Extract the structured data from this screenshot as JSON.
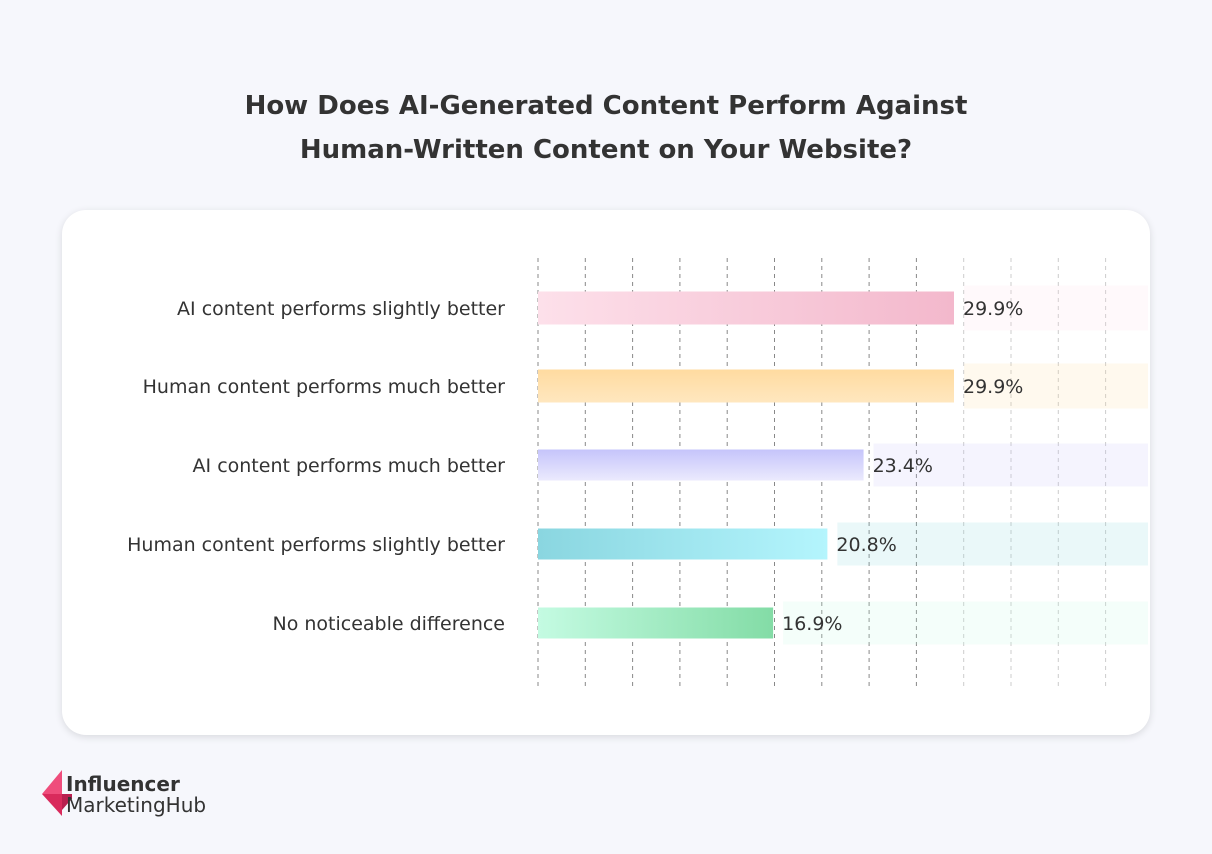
{
  "chart_data": {
    "type": "bar",
    "orientation": "horizontal",
    "title": "How Does AI-Generated Content Perform Against Human-Written Content on Your Website?",
    "title_lines": [
      "How Does AI-Generated Content Perform Against",
      "Human-Written Content on Your Website?"
    ],
    "categories": [
      "AI content performs slightly better",
      "Human content performs much better",
      "AI content performs much better",
      "Human content performs slightly better",
      "No noticeable difference"
    ],
    "values": [
      29.9,
      29.9,
      23.4,
      20.8,
      16.9
    ],
    "labels": [
      "29.9%",
      "29.9%",
      "23.4%",
      "20.8%",
      "16.9%"
    ],
    "unit": "%",
    "colors": [
      [
        "#fde0ea",
        "#f3b8cc"
      ],
      [
        "#ffdba0",
        "#ffe7bf"
      ],
      [
        "#c5c4fb",
        "#ebeafd"
      ],
      [
        "#8ad6e0",
        "#b4f5fd"
      ],
      [
        "#c4fbe2",
        "#83dca6"
      ]
    ],
    "grid": "vertical dashed",
    "xlim": [
      0,
      38
    ]
  },
  "brand": {
    "line1": "Influencer",
    "line2": "MarketingHub",
    "color": "#e8346a"
  }
}
